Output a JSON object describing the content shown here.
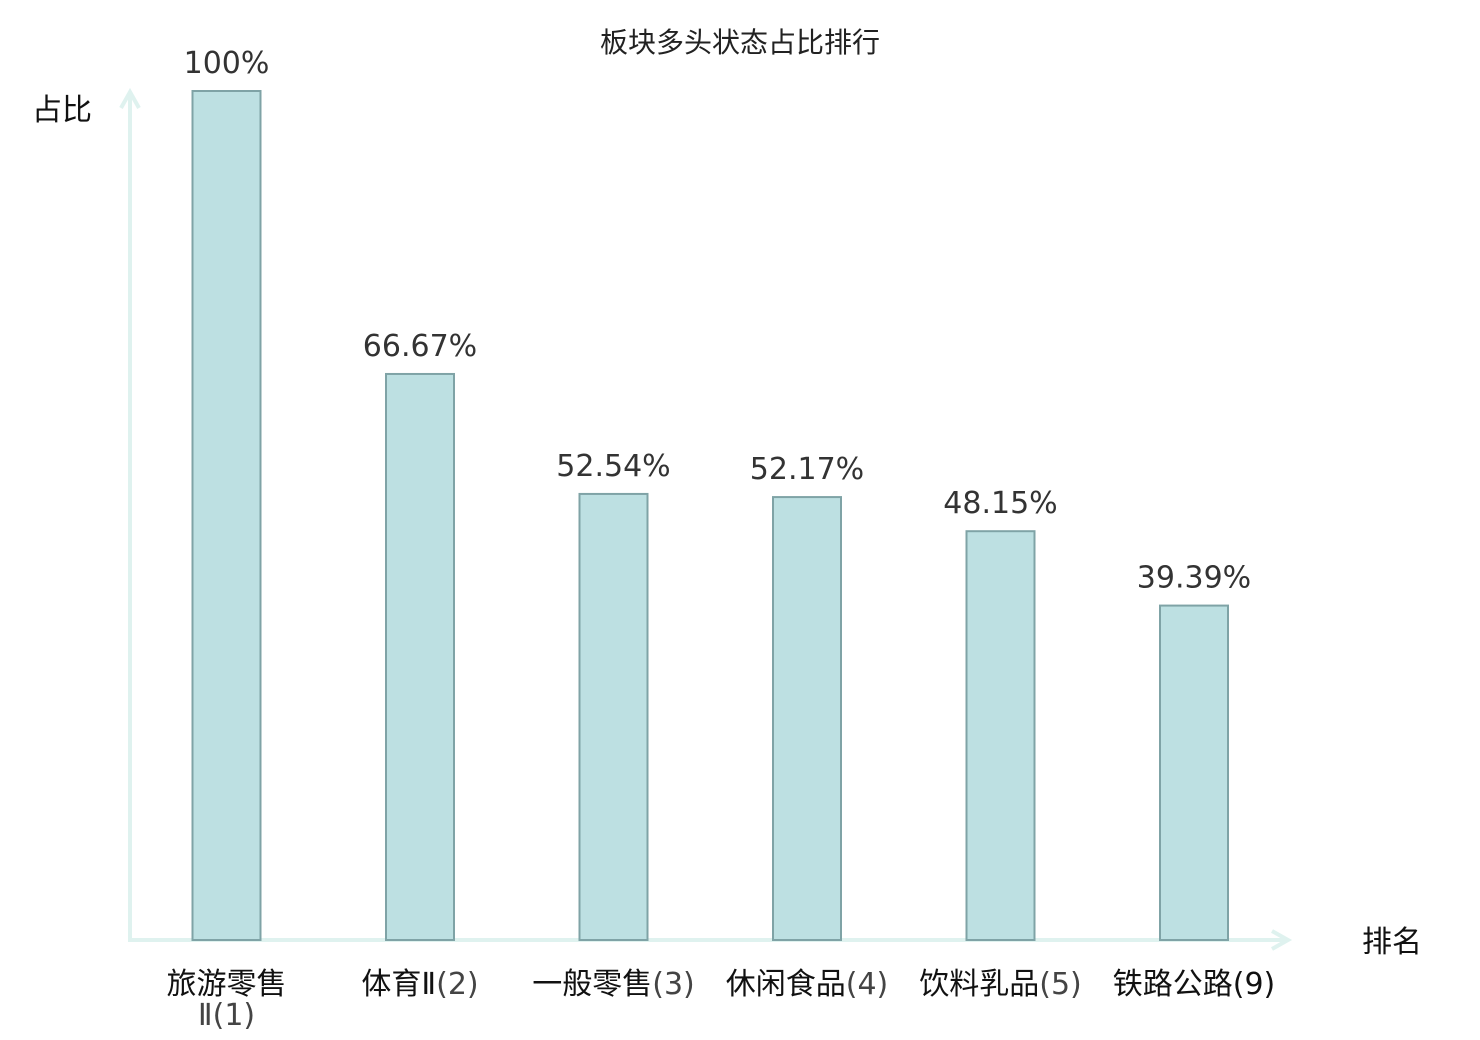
{
  "chart_data": {
    "type": "bar",
    "title": "板块多头状态占比排行",
    "ylabel": "占比",
    "xlabel": "排名",
    "ylim": [
      0,
      100
    ],
    "grid": false,
    "legend": "none",
    "categories": [
      {
        "name": "旅游零售Ⅱ",
        "rank": "(1)",
        "highlight": false
      },
      {
        "name": "体育Ⅱ",
        "rank": "(2)",
        "highlight": false
      },
      {
        "name": "一般零售",
        "rank": "(3)",
        "highlight": false
      },
      {
        "name": "休闲食品",
        "rank": "(4)",
        "highlight": false
      },
      {
        "name": "饮料乳品",
        "rank": "(5)",
        "highlight": false
      },
      {
        "name": "铁路公路",
        "rank": "(9)",
        "highlight": true
      }
    ],
    "values": [
      100,
      66.67,
      52.54,
      52.17,
      48.15,
      39.39
    ],
    "value_labels": [
      "100%",
      "66.67%",
      "52.54%",
      "52.17%",
      "48.15%",
      "39.39%"
    ]
  },
  "colors": {
    "bar_fill": "#bde0e2",
    "bar_stroke": "#7fa3a6",
    "axis": "#dff2ef",
    "highlight_text": "#e31a1c",
    "text": "#111111"
  }
}
